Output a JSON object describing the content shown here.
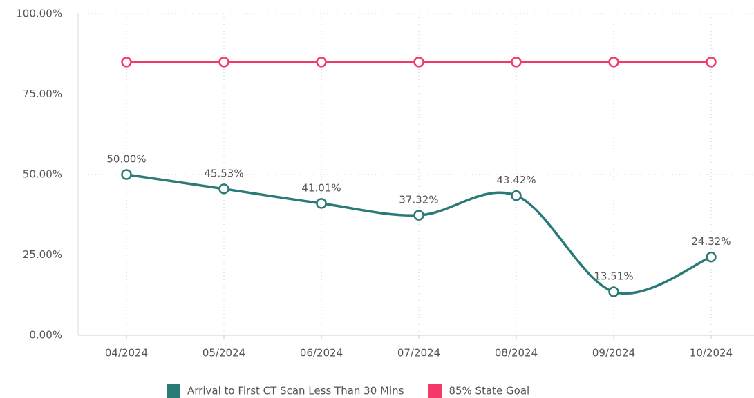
{
  "chart_data": {
    "type": "line",
    "categories": [
      "04/2024",
      "05/2024",
      "06/2024",
      "07/2024",
      "08/2024",
      "09/2024",
      "10/2024"
    ],
    "series": [
      {
        "name": "Arrival to First CT Scan Less Than 30 Mins",
        "color": "#2a7a78",
        "values": [
          50.0,
          45.53,
          41.01,
          37.32,
          43.42,
          13.51,
          24.32
        ],
        "value_labels": [
          "50.00%",
          "45.53%",
          "41.01%",
          "37.32%",
          "43.42%",
          "13.51%",
          "24.32%"
        ]
      },
      {
        "name": "85% State Goal",
        "color": "#f4386a",
        "values": [
          85,
          85,
          85,
          85,
          85,
          85,
          85
        ]
      }
    ],
    "ylim": [
      0,
      100
    ],
    "yticks": [
      {
        "value": 0,
        "label": "0.00%"
      },
      {
        "value": 25,
        "label": "25.00%"
      },
      {
        "value": 50,
        "label": "50.00%"
      },
      {
        "value": 75,
        "label": "75.00%"
      },
      {
        "value": 100,
        "label": "100.00%"
      }
    ],
    "grid": true,
    "legend": "bottom"
  }
}
